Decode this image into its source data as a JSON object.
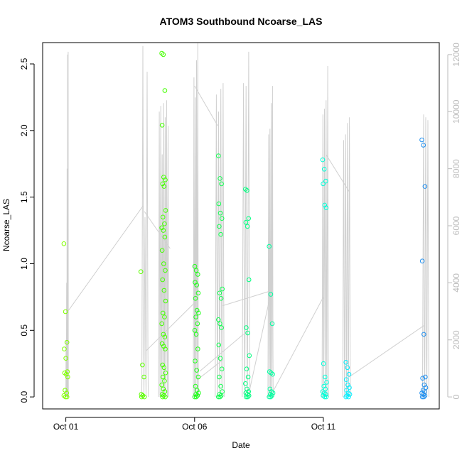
{
  "chart_data": {
    "type": "scatter",
    "title": "ATOM3 Southbound Ncoarse_LAS",
    "xlabel": "Date",
    "ylabel": "Ncoarse_LAS",
    "x_ticks": [
      "Oct 01",
      "Oct 06",
      "Oct 11"
    ],
    "x_tick_days": [
      1,
      6,
      11
    ],
    "xlim_days": [
      0.1,
      15.5
    ],
    "ylim": [
      -0.09,
      2.66
    ],
    "y_ticks": [
      0.0,
      0.5,
      1.0,
      1.5,
      2.0,
      2.5
    ],
    "y2_ticks": [
      0,
      2000,
      4000,
      6000,
      8000,
      10000,
      12000
    ],
    "y2lim": [
      -420,
      12420
    ],
    "grid": false,
    "secondary_line_color": "#d0d0d0",
    "clusters": [
      {
        "day": 1.0,
        "color": "#80ff00",
        "values": [
          1.15,
          0.64,
          0.41,
          0.36,
          0.29,
          0.19,
          0.18,
          0.17,
          0.15,
          0.05,
          0.03,
          0.01,
          0.0,
          0.0
        ]
      },
      {
        "day": 3.99,
        "color": "#5cff00",
        "values": [
          0.94,
          0.24,
          0.15,
          0.02,
          0.01,
          0.0,
          0.0
        ]
      },
      {
        "day": 4.8,
        "color": "#44ff00",
        "values": [
          2.58,
          2.57,
          2.3,
          2.04,
          1.65,
          1.63,
          1.6,
          1.58,
          1.4,
          1.35,
          1.3,
          1.27,
          1.25,
          1.2,
          1.1,
          1.0,
          0.95,
          0.88,
          0.8,
          0.72,
          0.63,
          0.6,
          0.55,
          0.47,
          0.45,
          0.4,
          0.38,
          0.36,
          0.24,
          0.22,
          0.18,
          0.15,
          0.12,
          0.09,
          0.06,
          0.04,
          0.02,
          0.01,
          0.0,
          0.0
        ]
      },
      {
        "day": 6.08,
        "color": "#20ff1a",
        "values": [
          0.98,
          0.95,
          0.92,
          0.86,
          0.84,
          0.78,
          0.74,
          0.65,
          0.63,
          0.6,
          0.55,
          0.5,
          0.47,
          0.36,
          0.27,
          0.2,
          0.15,
          0.08,
          0.05,
          0.03,
          0.02,
          0.01,
          0.0,
          0.0
        ]
      },
      {
        "day": 7.0,
        "color": "#10ff50",
        "values": [
          1.81,
          1.64,
          1.6,
          1.45,
          1.38,
          1.34,
          1.28,
          1.22,
          0.81,
          0.78,
          0.74,
          0.58,
          0.55,
          0.52,
          0.39,
          0.29,
          0.21,
          0.15,
          0.08,
          0.04,
          0.02,
          0.01,
          0.0,
          0.0
        ]
      },
      {
        "day": 8.05,
        "color": "#00ff80",
        "values": [
          1.56,
          1.55,
          1.34,
          1.31,
          1.28,
          0.88,
          0.52,
          0.48,
          0.31,
          0.21,
          0.15,
          0.1,
          0.06,
          0.04,
          0.03,
          0.02,
          0.01,
          0.0,
          0.0
        ]
      },
      {
        "day": 8.97,
        "color": "#00ffa0",
        "values": [
          1.13,
          0.77,
          0.55,
          0.19,
          0.18,
          0.17,
          0.06,
          0.04,
          0.03,
          0.02,
          0.01,
          0.0,
          0.0
        ]
      },
      {
        "day": 11.05,
        "color": "#00ffd8",
        "values": [
          1.78,
          1.71,
          1.62,
          1.6,
          1.44,
          1.42,
          0.25,
          0.15,
          0.11,
          0.08,
          0.06,
          0.04,
          0.03,
          0.02,
          0.01,
          0.0,
          0.0
        ]
      },
      {
        "day": 11.95,
        "color": "#00f0ff",
        "values": [
          0.26,
          0.22,
          0.17,
          0.13,
          0.09,
          0.07,
          0.05,
          0.03,
          0.02,
          0.01,
          0.0,
          0.0
        ]
      },
      {
        "day": 14.9,
        "color": "#2090f0",
        "values": [
          1.93,
          1.89,
          1.58,
          1.02,
          0.47,
          0.15,
          0.14,
          0.09,
          0.07,
          0.05,
          0.04,
          0.03,
          0.02,
          0.01,
          0.0,
          0.0
        ]
      }
    ],
    "secondary_series": {
      "bursts": [
        {
          "start": 1.0,
          "end": 1.1,
          "peaks": [
            2000,
            4000,
            8000,
            12000,
            12100
          ]
        },
        {
          "start": 3.95,
          "end": 4.2,
          "peaks": [
            12300,
            6300,
            11400
          ]
        },
        {
          "start": 4.6,
          "end": 5.0,
          "peaks": [
            10000,
            10200,
            8500,
            10300,
            9800,
            10400,
            9500
          ]
        },
        {
          "start": 5.95,
          "end": 6.15,
          "peaks": [
            11200,
            10500,
            11800,
            12400
          ]
        },
        {
          "start": 6.8,
          "end": 7.15,
          "peaks": [
            10600,
            10000,
            10800,
            11000
          ]
        },
        {
          "start": 7.85,
          "end": 8.15,
          "peaks": [
            11000,
            10900,
            12100
          ]
        },
        {
          "start": 8.85,
          "end": 9.05,
          "peaks": [
            9200,
            9400,
            10300,
            10900
          ]
        },
        {
          "start": 10.95,
          "end": 11.2,
          "peaks": [
            9900,
            10100,
            10400,
            11600
          ]
        },
        {
          "start": 11.75,
          "end": 12.05,
          "peaks": [
            9000,
            9200,
            9600,
            9800
          ]
        },
        {
          "start": 14.85,
          "end": 15.1,
          "peaks": [
            9900,
            9800,
            9700
          ]
        }
      ],
      "connectors": [
        {
          "from": [
            1.08,
            3000
          ],
          "to": [
            4.0,
            6700
          ]
        },
        {
          "from": [
            4.05,
            6500
          ],
          "to": [
            5.05,
            5200
          ]
        },
        {
          "from": [
            4.1,
            1600
          ],
          "to": [
            6.0,
            3300
          ]
        },
        {
          "from": [
            6.0,
            10900
          ],
          "to": [
            6.9,
            9500
          ]
        },
        {
          "from": [
            6.1,
            600
          ],
          "to": [
            7.1,
            1300
          ]
        },
        {
          "from": [
            6.2,
            900
          ],
          "to": [
            7.9,
            2200
          ]
        },
        {
          "from": [
            7.1,
            3200
          ],
          "to": [
            8.9,
            3700
          ]
        },
        {
          "from": [
            8.1,
            100
          ],
          "to": [
            9.0,
            3800
          ]
        },
        {
          "from": [
            11.1,
            8500
          ],
          "to": [
            12.0,
            7200
          ]
        },
        {
          "from": [
            9.05,
            200
          ],
          "to": [
            11.0,
            3500
          ]
        },
        {
          "from": [
            12.0,
            700
          ],
          "to": [
            14.9,
            2500
          ]
        }
      ]
    }
  }
}
